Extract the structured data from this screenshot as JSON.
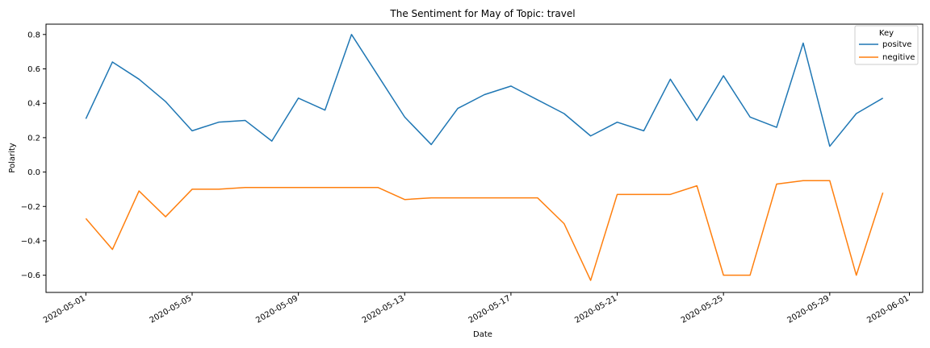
{
  "chart_data": {
    "type": "line",
    "title": "The Sentiment for May of Topic: travel",
    "xlabel": "Date",
    "ylabel": "Polarity",
    "xlim": [
      "2020-04-29T12:00",
      "2020-06-01T12:00"
    ],
    "ylim": [
      -0.7,
      0.86
    ],
    "grid": false,
    "legend": {
      "title": "Key",
      "placement": "top-right"
    },
    "x_ticks": [
      "2020-05-01",
      "2020-05-05",
      "2020-05-09",
      "2020-05-13",
      "2020-05-17",
      "2020-05-21",
      "2020-05-25",
      "2020-05-29",
      "2020-06-01"
    ],
    "y_ticks": [
      -0.6,
      -0.4,
      -0.2,
      0.0,
      0.2,
      0.4,
      0.6,
      0.8
    ],
    "y_tick_labels": [
      "−0.6",
      "−0.4",
      "−0.2",
      "0.0",
      "0.2",
      "0.4",
      "0.6",
      "0.8"
    ],
    "x": [
      "2020-05-01",
      "2020-05-02",
      "2020-05-03",
      "2020-05-04",
      "2020-05-05",
      "2020-05-06",
      "2020-05-07",
      "2020-05-08",
      "2020-05-09",
      "2020-05-10",
      "2020-05-11",
      "2020-05-12",
      "2020-05-13",
      "2020-05-14",
      "2020-05-15",
      "2020-05-16",
      "2020-05-17",
      "2020-05-18",
      "2020-05-19",
      "2020-05-20",
      "2020-05-21",
      "2020-05-22",
      "2020-05-23",
      "2020-05-24",
      "2020-05-25",
      "2020-05-26",
      "2020-05-27",
      "2020-05-28",
      "2020-05-29",
      "2020-05-30",
      "2020-05-31"
    ],
    "series": [
      {
        "name": "positve",
        "color": "#1f77b4",
        "values": [
          0.31,
          0.64,
          0.54,
          0.41,
          0.24,
          0.29,
          0.3,
          0.18,
          0.43,
          0.36,
          0.8,
          0.56,
          0.32,
          0.16,
          0.37,
          0.45,
          0.5,
          0.42,
          0.34,
          0.21,
          0.29,
          0.24,
          0.54,
          0.3,
          0.56,
          0.32,
          0.26,
          0.75,
          0.15,
          0.34,
          0.43
        ]
      },
      {
        "name": "negitive",
        "color": "#ff7f0e",
        "values": [
          -0.27,
          -0.45,
          -0.11,
          -0.26,
          -0.1,
          -0.1,
          -0.09,
          -0.09,
          -0.09,
          -0.09,
          -0.09,
          -0.09,
          -0.16,
          -0.15,
          -0.15,
          -0.15,
          -0.15,
          -0.15,
          -0.3,
          -0.63,
          -0.13,
          -0.13,
          -0.13,
          -0.08,
          -0.6,
          -0.6,
          -0.07,
          -0.05,
          -0.05,
          -0.6,
          -0.12
        ]
      }
    ]
  }
}
